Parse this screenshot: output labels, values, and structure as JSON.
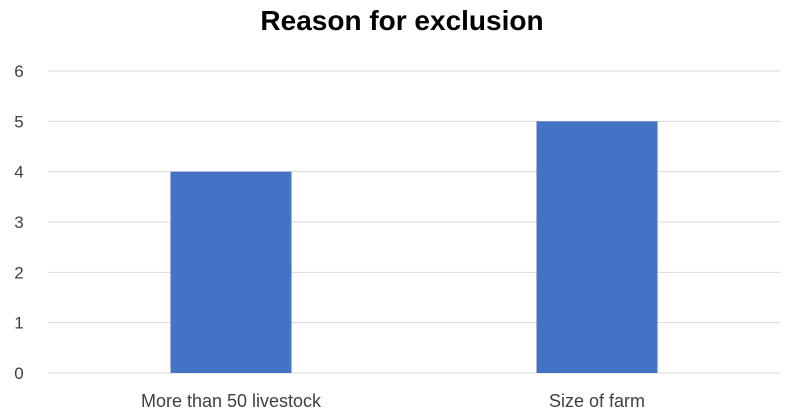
{
  "chart_data": {
    "type": "bar",
    "title": "Reason for exclusion",
    "categories": [
      "More than 50 livestock",
      "Size of farm"
    ],
    "values": [
      4,
      5
    ],
    "xlabel": "",
    "ylabel": "",
    "ylim": [
      0,
      6
    ],
    "yticks": [
      0,
      1,
      2,
      3,
      4,
      5,
      6
    ],
    "grid": true,
    "legend": "none",
    "bar_color": "#4472C4",
    "grid_color": "#D9D9D9"
  }
}
